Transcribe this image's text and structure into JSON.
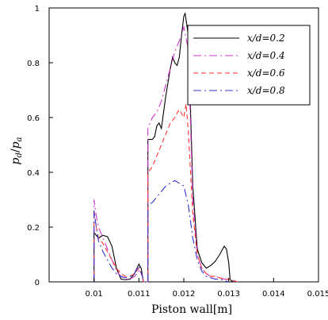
{
  "chart_data": {
    "type": "line",
    "xlabel": "Piston  wall[m]",
    "ylabel": "pd/pa",
    "xlim": [
      0.009,
      0.015
    ],
    "ylim": [
      0,
      1
    ],
    "x_ticks": [
      0.01,
      0.011,
      0.012,
      0.013,
      0.014,
      0.015
    ],
    "x_tick_labels": [
      "0.01",
      "0.011",
      "0.012",
      "0.013",
      "0.014",
      "0.015"
    ],
    "y_ticks": [
      0,
      0.2,
      0.4,
      0.6,
      0.8,
      1
    ],
    "y_tick_labels": [
      "0",
      "0.2",
      "0.4",
      "0.6",
      "0.8",
      "1"
    ],
    "grid": false,
    "legend_position": "top-right",
    "series": [
      {
        "name": "x/d=0.2",
        "color": "#000000",
        "dash": "solid",
        "points": [
          [
            0.01,
            0
          ],
          [
            0.01,
            0.18
          ],
          [
            0.01005,
            0.17
          ],
          [
            0.0101,
            0.16
          ],
          [
            0.0102,
            0.17
          ],
          [
            0.0103,
            0.165
          ],
          [
            0.0104,
            0.13
          ],
          [
            0.0105,
            0.05
          ],
          [
            0.0106,
            0.01
          ],
          [
            0.0107,
            0.008
          ],
          [
            0.0108,
            0.01
          ],
          [
            0.0109,
            0.03
          ],
          [
            0.011,
            0.065
          ],
          [
            0.01105,
            0.05
          ],
          [
            0.01108,
            0.02
          ],
          [
            0.0111,
            0
          ],
          [
            0.0112,
            0
          ],
          [
            0.0112,
            0.52
          ],
          [
            0.0113,
            0.52
          ],
          [
            0.01135,
            0.53
          ],
          [
            0.0114,
            0.57
          ],
          [
            0.01145,
            0.58
          ],
          [
            0.0115,
            0.56
          ],
          [
            0.0116,
            0.68
          ],
          [
            0.0117,
            0.78
          ],
          [
            0.01175,
            0.82
          ],
          [
            0.0118,
            0.8
          ],
          [
            0.01185,
            0.79
          ],
          [
            0.0119,
            0.82
          ],
          [
            0.01195,
            0.9
          ],
          [
            0.012,
            0.97
          ],
          [
            0.01203,
            0.98
          ],
          [
            0.0121,
            0.9
          ],
          [
            0.0122,
            0.35
          ],
          [
            0.0123,
            0.12
          ],
          [
            0.0124,
            0.07
          ],
          [
            0.0125,
            0.05
          ],
          [
            0.0126,
            0.06
          ],
          [
            0.0127,
            0.075
          ],
          [
            0.0128,
            0.1
          ],
          [
            0.0129,
            0.13
          ],
          [
            0.01295,
            0.12
          ],
          [
            0.013,
            0.07
          ],
          [
            0.01303,
            0.01
          ],
          [
            0.01305,
            0.005
          ],
          [
            0.0131,
            0
          ]
        ]
      },
      {
        "name": "x/d=0.4",
        "color": "#cc33cc",
        "dash": "dashdot",
        "points": [
          [
            0.01,
            0
          ],
          [
            0.01,
            0.3
          ],
          [
            0.01005,
            0.24
          ],
          [
            0.0101,
            0.2
          ],
          [
            0.0102,
            0.16
          ],
          [
            0.0103,
            0.12
          ],
          [
            0.0104,
            0.08
          ],
          [
            0.0105,
            0.04
          ],
          [
            0.0106,
            0.02
          ],
          [
            0.0107,
            0.01
          ],
          [
            0.0108,
            0.01
          ],
          [
            0.0109,
            0.02
          ],
          [
            0.011,
            0.04
          ],
          [
            0.01108,
            0.02
          ],
          [
            0.0111,
            0
          ],
          [
            0.0112,
            0
          ],
          [
            0.0112,
            0.56
          ],
          [
            0.0113,
            0.6
          ],
          [
            0.0114,
            0.62
          ],
          [
            0.0115,
            0.66
          ],
          [
            0.0116,
            0.72
          ],
          [
            0.0117,
            0.78
          ],
          [
            0.0118,
            0.84
          ],
          [
            0.0119,
            0.88
          ],
          [
            0.012,
            0.93
          ],
          [
            0.0121,
            0.85
          ],
          [
            0.0122,
            0.3
          ],
          [
            0.0123,
            0.1
          ],
          [
            0.0124,
            0.05
          ],
          [
            0.0125,
            0.03
          ],
          [
            0.0126,
            0.02
          ],
          [
            0.0127,
            0.02
          ],
          [
            0.0128,
            0.015
          ],
          [
            0.0129,
            0.01
          ],
          [
            0.013,
            0.01
          ],
          [
            0.0131,
            0.005
          ],
          [
            0.0132,
            0
          ]
        ]
      },
      {
        "name": "x/d=0.6",
        "color": "#ff3333",
        "dash": "dashed",
        "points": [
          [
            0.01,
            0
          ],
          [
            0.01,
            0.26
          ],
          [
            0.01005,
            0.2
          ],
          [
            0.0101,
            0.16
          ],
          [
            0.0102,
            0.14
          ],
          [
            0.0103,
            0.11
          ],
          [
            0.0104,
            0.08
          ],
          [
            0.0105,
            0.05
          ],
          [
            0.0106,
            0.03
          ],
          [
            0.0107,
            0.02
          ],
          [
            0.0108,
            0.02
          ],
          [
            0.0109,
            0.03
          ],
          [
            0.011,
            0.05
          ],
          [
            0.01108,
            0.02
          ],
          [
            0.0111,
            0
          ],
          [
            0.0112,
            0
          ],
          [
            0.0112,
            0.4
          ],
          [
            0.0113,
            0.42
          ],
          [
            0.0114,
            0.46
          ],
          [
            0.0115,
            0.5
          ],
          [
            0.0116,
            0.54
          ],
          [
            0.0117,
            0.58
          ],
          [
            0.0118,
            0.6
          ],
          [
            0.0119,
            0.63
          ],
          [
            0.012,
            0.6
          ],
          [
            0.01205,
            0.65
          ],
          [
            0.0121,
            0.55
          ],
          [
            0.0122,
            0.25
          ],
          [
            0.0123,
            0.1
          ],
          [
            0.0124,
            0.05
          ],
          [
            0.0125,
            0.03
          ],
          [
            0.0126,
            0.02
          ],
          [
            0.0127,
            0.02
          ],
          [
            0.0128,
            0.015
          ],
          [
            0.0129,
            0.01
          ],
          [
            0.013,
            0.01
          ],
          [
            0.0131,
            0.005
          ],
          [
            0.0132,
            0
          ]
        ]
      },
      {
        "name": "x/d=0.8",
        "color": "#3333cc",
        "dash": "dashdot",
        "points": [
          [
            0.01,
            0
          ],
          [
            0.01,
            0.26
          ],
          [
            0.01005,
            0.2
          ],
          [
            0.0101,
            0.15
          ],
          [
            0.0102,
            0.11
          ],
          [
            0.0103,
            0.08
          ],
          [
            0.0104,
            0.05
          ],
          [
            0.0105,
            0.03
          ],
          [
            0.0106,
            0.02
          ],
          [
            0.0107,
            0.015
          ],
          [
            0.0108,
            0.02
          ],
          [
            0.0109,
            0.03
          ],
          [
            0.011,
            0.06
          ],
          [
            0.01108,
            0.02
          ],
          [
            0.0111,
            0
          ],
          [
            0.0112,
            0
          ],
          [
            0.0112,
            0.28
          ],
          [
            0.0113,
            0.29
          ],
          [
            0.0114,
            0.31
          ],
          [
            0.0115,
            0.33
          ],
          [
            0.0116,
            0.35
          ],
          [
            0.0117,
            0.36
          ],
          [
            0.0118,
            0.37
          ],
          [
            0.0119,
            0.36
          ],
          [
            0.012,
            0.35
          ],
          [
            0.0121,
            0.28
          ],
          [
            0.0122,
            0.16
          ],
          [
            0.0123,
            0.08
          ],
          [
            0.0124,
            0.04
          ],
          [
            0.0125,
            0.02
          ],
          [
            0.0126,
            0.015
          ],
          [
            0.0127,
            0.01
          ],
          [
            0.0128,
            0.01
          ],
          [
            0.0129,
            0.005
          ],
          [
            0.013,
            0
          ]
        ]
      }
    ]
  }
}
